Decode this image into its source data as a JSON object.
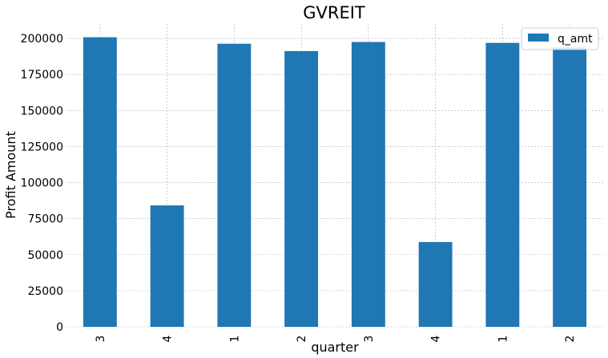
{
  "chart_data": {
    "type": "bar",
    "title": "GVREIT",
    "xlabel": "quarter",
    "ylabel": "Profit Amount",
    "categories": [
      "3",
      "4",
      "1",
      "2",
      "3",
      "4",
      "1",
      "2"
    ],
    "series": [
      {
        "name": "q_amt",
        "color": "#1f77b4",
        "values": [
          200800,
          84200,
          196300,
          191200,
          197500,
          58800,
          196900,
          193800
        ]
      }
    ],
    "ylim": [
      0,
      210000
    ],
    "yticks": [
      0,
      25000,
      50000,
      75000,
      100000,
      125000,
      150000,
      175000,
      200000
    ],
    "grid": true,
    "legend_position": "top-right"
  }
}
